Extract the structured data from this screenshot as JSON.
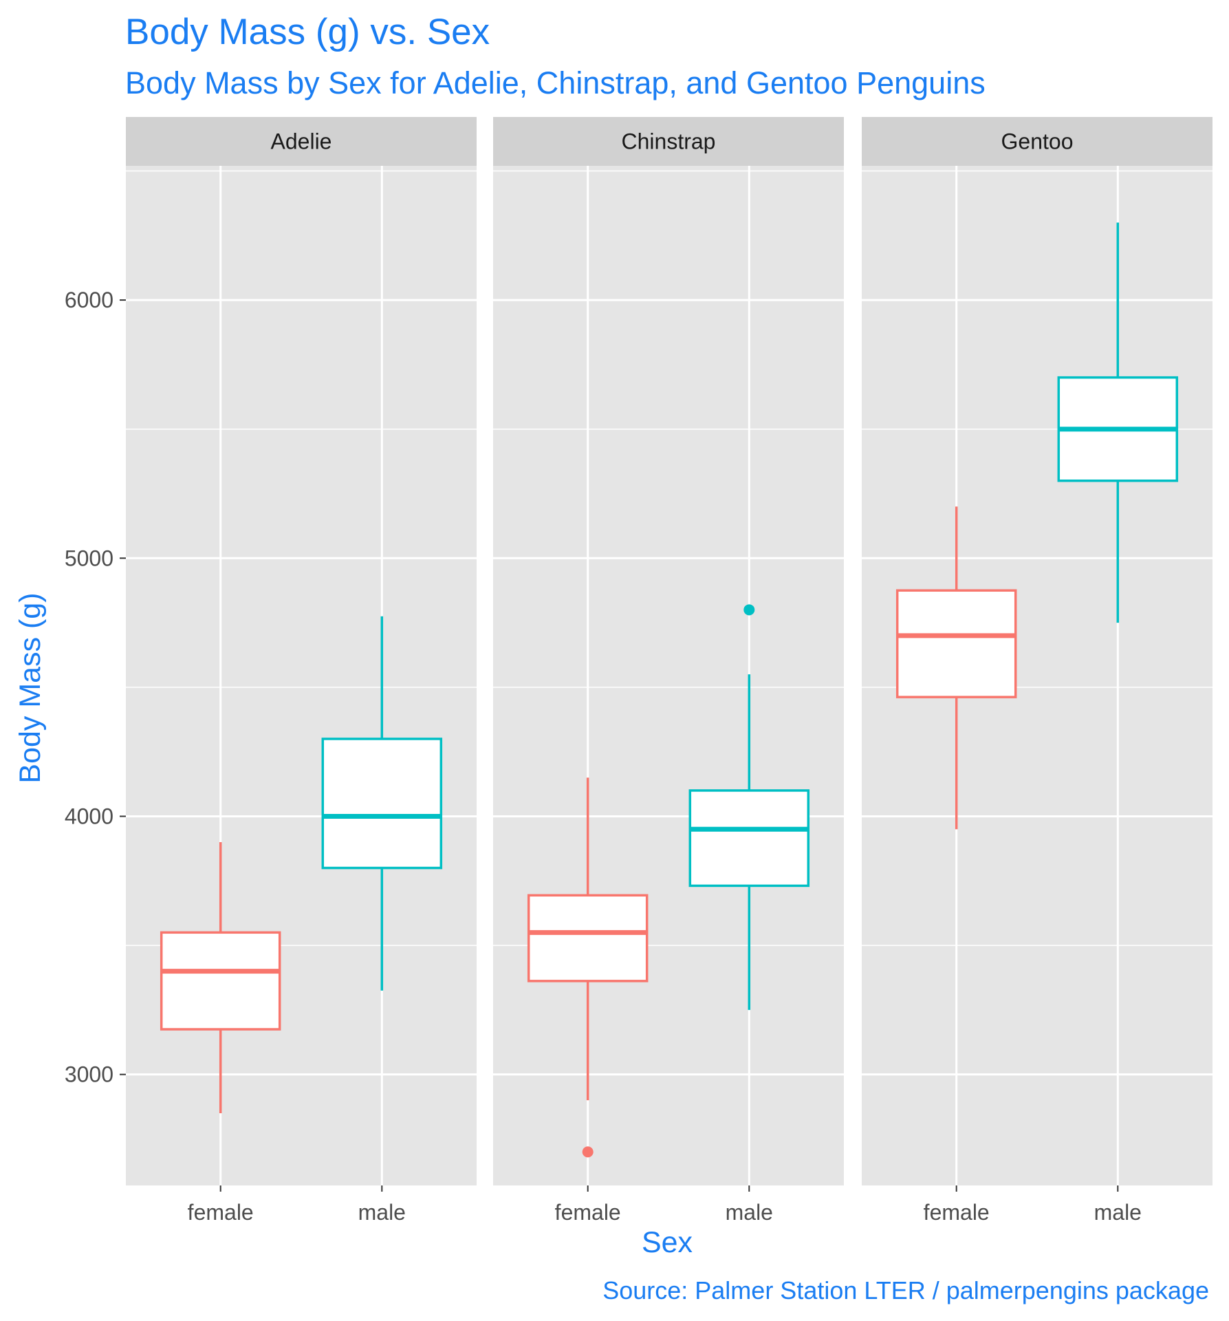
{
  "chart_data": {
    "type": "boxplot",
    "title": "Body Mass (g) vs. Sex",
    "subtitle": "Body Mass by Sex for Adelie, Chinstrap, and Gentoo Penguins",
    "xlabel": "Sex",
    "ylabel": "Body Mass (g)",
    "caption": "Source: Palmer Station LTER / palmerpengins package",
    "ylim": [
      2570,
      6520
    ],
    "yticks": [
      3000,
      4000,
      5000,
      6000
    ],
    "grid": true,
    "facets": [
      "Adelie",
      "Chinstrap",
      "Gentoo"
    ],
    "categories": [
      "female",
      "male"
    ],
    "colors": {
      "female": "#F8766D",
      "male": "#00BFC4",
      "panel_bg": "#e5e5e5",
      "strip_bg": "#d1d1d1"
    },
    "boxes": [
      {
        "facet": "Adelie",
        "sex": "female",
        "min": 2850,
        "q1": 3175,
        "median": 3400,
        "q3": 3550,
        "max": 3900,
        "outliers": []
      },
      {
        "facet": "Adelie",
        "sex": "male",
        "min": 3325,
        "q1": 3800,
        "median": 4000,
        "q3": 4300,
        "max": 4775,
        "outliers": []
      },
      {
        "facet": "Chinstrap",
        "sex": "female",
        "min": 2900,
        "q1": 3362,
        "median": 3550,
        "q3": 3694,
        "max": 4150,
        "outliers": [
          2700
        ]
      },
      {
        "facet": "Chinstrap",
        "sex": "male",
        "min": 3250,
        "q1": 3731,
        "median": 3950,
        "q3": 4100,
        "max": 4550,
        "outliers": [
          4800
        ]
      },
      {
        "facet": "Gentoo",
        "sex": "female",
        "min": 3950,
        "q1": 4462,
        "median": 4700,
        "q3": 4875,
        "max": 5200,
        "outliers": []
      },
      {
        "facet": "Gentoo",
        "sex": "male",
        "min": 4750,
        "q1": 5300,
        "median": 5500,
        "q3": 5700,
        "max": 6300,
        "outliers": []
      }
    ]
  }
}
